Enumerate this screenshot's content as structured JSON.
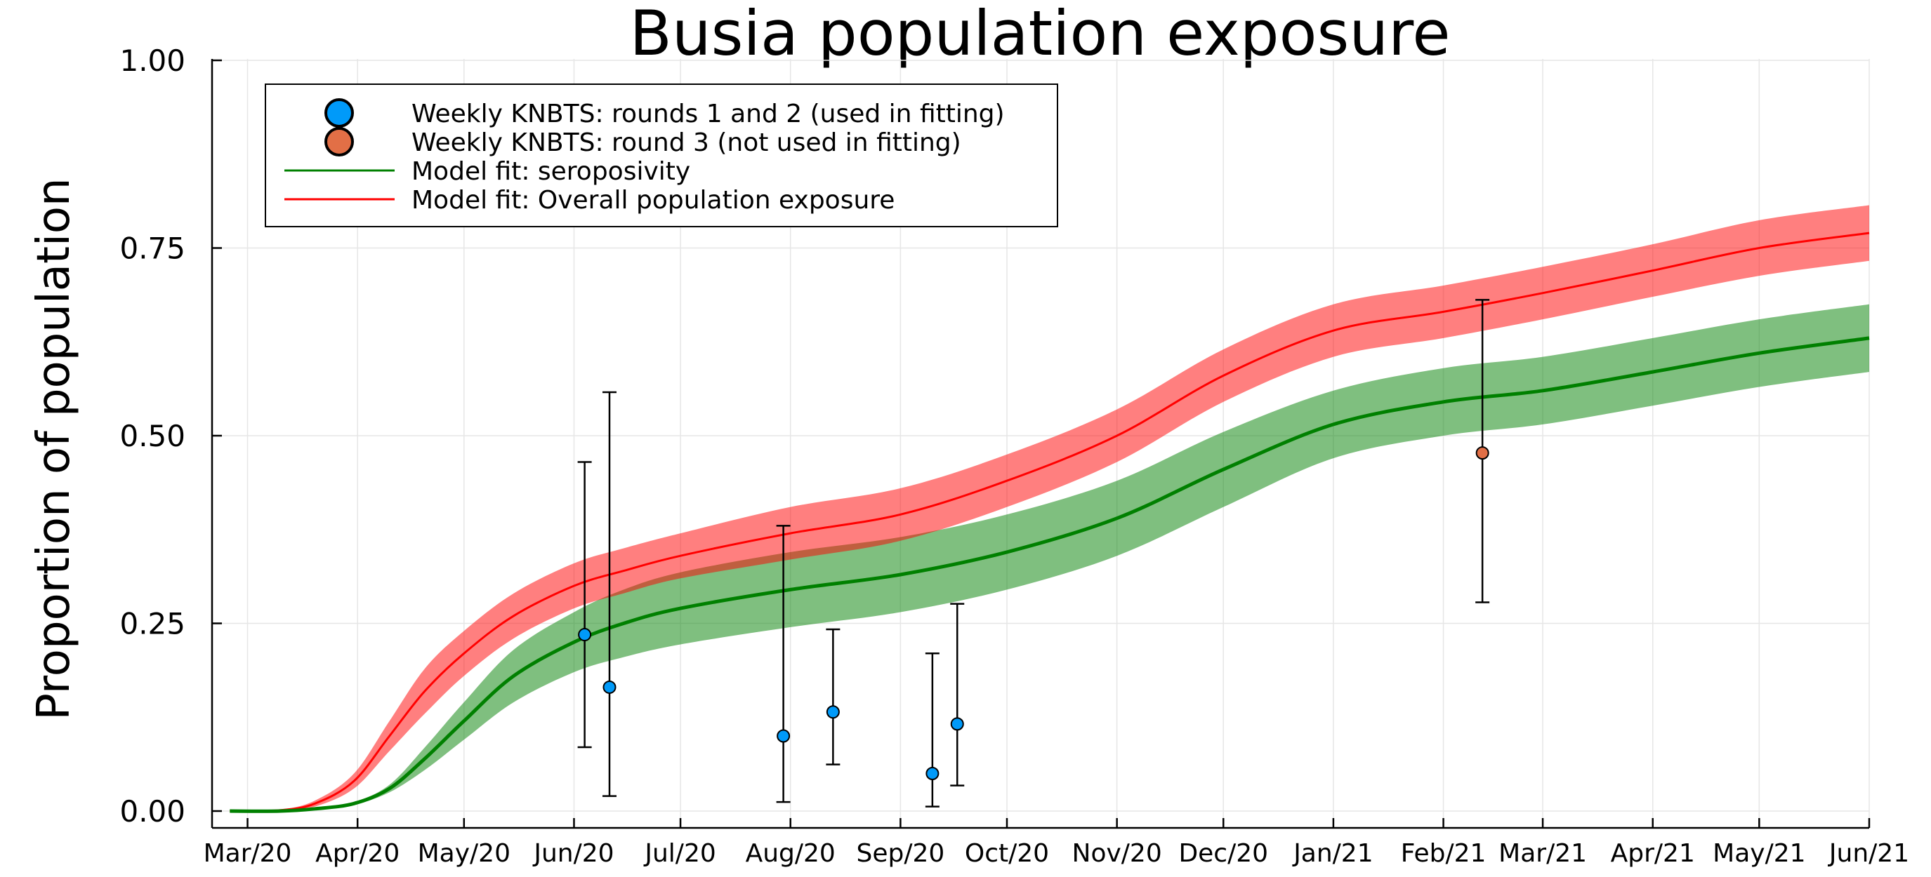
{
  "chart_data": {
    "type": "line",
    "title": "Busia population exposure",
    "xlabel": "",
    "ylabel": "Proportion of population",
    "ylim": [
      0,
      1
    ],
    "yticks": [
      {
        "value": 0,
        "label": "0.00"
      },
      {
        "value": 0.25,
        "label": "0.25"
      },
      {
        "value": 0.5,
        "label": "0.50"
      },
      {
        "value": 0.75,
        "label": "0.75"
      },
      {
        "value": 1,
        "label": "1.00"
      }
    ],
    "xlim": [
      "2020-02-20",
      "2021-06-01"
    ],
    "xticks": [
      {
        "date": "2020-03-01",
        "label": "Mar/20"
      },
      {
        "date": "2020-04-01",
        "label": "Apr/20"
      },
      {
        "date": "2020-05-01",
        "label": "May/20"
      },
      {
        "date": "2020-06-01",
        "label": "Jun/20"
      },
      {
        "date": "2020-07-01",
        "label": "Jul/20"
      },
      {
        "date": "2020-08-01",
        "label": "Aug/20"
      },
      {
        "date": "2020-09-01",
        "label": "Sep/20"
      },
      {
        "date": "2020-10-01",
        "label": "Oct/20"
      },
      {
        "date": "2020-11-01",
        "label": "Nov/20"
      },
      {
        "date": "2020-12-01",
        "label": "Dec/20"
      },
      {
        "date": "2021-01-01",
        "label": "Jan/21"
      },
      {
        "date": "2021-02-01",
        "label": "Feb/21"
      },
      {
        "date": "2021-03-01",
        "label": "Mar/21"
      },
      {
        "date": "2021-04-01",
        "label": "Apr/21"
      },
      {
        "date": "2021-05-01",
        "label": "May/21"
      },
      {
        "date": "2021-06-01",
        "label": "Jun/21"
      }
    ],
    "grid": true,
    "legend_position": "top-left",
    "series": [
      {
        "name": "Model fit: Overall population exposure",
        "kind": "line_with_band",
        "color": "#ff0000",
        "band_color": "#ff0000",
        "points": [
          {
            "x": "2020-02-25",
            "y": 0.0,
            "lo": 0.0,
            "hi": 0.0
          },
          {
            "x": "2020-03-10",
            "y": 0.001,
            "lo": 0.0,
            "hi": 0.002
          },
          {
            "x": "2020-03-20",
            "y": 0.01,
            "lo": 0.006,
            "hi": 0.014
          },
          {
            "x": "2020-03-31",
            "y": 0.04,
            "lo": 0.03,
            "hi": 0.05
          },
          {
            "x": "2020-04-10",
            "y": 0.1,
            "lo": 0.08,
            "hi": 0.12
          },
          {
            "x": "2020-04-20",
            "y": 0.16,
            "lo": 0.13,
            "hi": 0.19
          },
          {
            "x": "2020-05-01",
            "y": 0.21,
            "lo": 0.18,
            "hi": 0.24
          },
          {
            "x": "2020-05-15",
            "y": 0.26,
            "lo": 0.23,
            "hi": 0.29
          },
          {
            "x": "2020-06-01",
            "y": 0.3,
            "lo": 0.27,
            "hi": 0.33
          },
          {
            "x": "2020-06-15",
            "y": 0.32,
            "lo": 0.29,
            "hi": 0.35
          },
          {
            "x": "2020-07-01",
            "y": 0.34,
            "lo": 0.31,
            "hi": 0.37
          },
          {
            "x": "2020-08-01",
            "y": 0.37,
            "lo": 0.335,
            "hi": 0.405
          },
          {
            "x": "2020-09-01",
            "y": 0.395,
            "lo": 0.36,
            "hi": 0.43
          },
          {
            "x": "2020-10-01",
            "y": 0.44,
            "lo": 0.405,
            "hi": 0.475
          },
          {
            "x": "2020-11-01",
            "y": 0.5,
            "lo": 0.465,
            "hi": 0.535
          },
          {
            "x": "2020-12-01",
            "y": 0.58,
            "lo": 0.545,
            "hi": 0.615
          },
          {
            "x": "2021-01-01",
            "y": 0.64,
            "lo": 0.605,
            "hi": 0.675
          },
          {
            "x": "2021-02-01",
            "y": 0.665,
            "lo": 0.63,
            "hi": 0.7
          },
          {
            "x": "2021-03-01",
            "y": 0.69,
            "lo": 0.655,
            "hi": 0.725
          },
          {
            "x": "2021-04-01",
            "y": 0.72,
            "lo": 0.685,
            "hi": 0.755
          },
          {
            "x": "2021-05-01",
            "y": 0.75,
            "lo": 0.713,
            "hi": 0.787
          },
          {
            "x": "2021-06-01",
            "y": 0.77,
            "lo": 0.733,
            "hi": 0.807
          }
        ]
      },
      {
        "name": "Model fit: seroposivity",
        "kind": "line_with_band",
        "color": "#008000",
        "band_color": "#008000",
        "points": [
          {
            "x": "2020-02-25",
            "y": 0.0,
            "lo": 0.0,
            "hi": 0.0
          },
          {
            "x": "2020-03-10",
            "y": 0.0,
            "lo": 0.0,
            "hi": 0.0
          },
          {
            "x": "2020-03-20",
            "y": 0.003,
            "lo": 0.002,
            "hi": 0.004
          },
          {
            "x": "2020-03-31",
            "y": 0.01,
            "lo": 0.008,
            "hi": 0.012
          },
          {
            "x": "2020-04-10",
            "y": 0.03,
            "lo": 0.025,
            "hi": 0.035
          },
          {
            "x": "2020-04-20",
            "y": 0.07,
            "lo": 0.055,
            "hi": 0.085
          },
          {
            "x": "2020-05-01",
            "y": 0.12,
            "lo": 0.095,
            "hi": 0.145
          },
          {
            "x": "2020-05-15",
            "y": 0.18,
            "lo": 0.145,
            "hi": 0.215
          },
          {
            "x": "2020-06-01",
            "y": 0.225,
            "lo": 0.185,
            "hi": 0.265
          },
          {
            "x": "2020-06-15",
            "y": 0.25,
            "lo": 0.205,
            "hi": 0.295
          },
          {
            "x": "2020-07-01",
            "y": 0.27,
            "lo": 0.222,
            "hi": 0.318
          },
          {
            "x": "2020-08-01",
            "y": 0.295,
            "lo": 0.245,
            "hi": 0.345
          },
          {
            "x": "2020-09-01",
            "y": 0.315,
            "lo": 0.265,
            "hi": 0.365
          },
          {
            "x": "2020-10-01",
            "y": 0.345,
            "lo": 0.295,
            "hi": 0.395
          },
          {
            "x": "2020-11-01",
            "y": 0.39,
            "lo": 0.34,
            "hi": 0.44
          },
          {
            "x": "2020-12-01",
            "y": 0.455,
            "lo": 0.405,
            "hi": 0.505
          },
          {
            "x": "2021-01-01",
            "y": 0.515,
            "lo": 0.47,
            "hi": 0.56
          },
          {
            "x": "2021-02-01",
            "y": 0.545,
            "lo": 0.5,
            "hi": 0.59
          },
          {
            "x": "2021-03-01",
            "y": 0.56,
            "lo": 0.515,
            "hi": 0.605
          },
          {
            "x": "2021-04-01",
            "y": 0.585,
            "lo": 0.54,
            "hi": 0.63
          },
          {
            "x": "2021-05-01",
            "y": 0.61,
            "lo": 0.565,
            "hi": 0.655
          },
          {
            "x": "2021-06-01",
            "y": 0.63,
            "lo": 0.585,
            "hi": 0.675
          }
        ]
      },
      {
        "name": "Weekly KNBTS: rounds 1 and 2 (used in fitting)",
        "kind": "points_with_errorbars",
        "color": "#009af9",
        "points": [
          {
            "x": "2020-06-04",
            "y": 0.235,
            "lo": 0.085,
            "hi": 0.465
          },
          {
            "x": "2020-06-11",
            "y": 0.165,
            "lo": 0.02,
            "hi": 0.558
          },
          {
            "x": "2020-07-30",
            "y": 0.1,
            "lo": 0.012,
            "hi": 0.38
          },
          {
            "x": "2020-08-13",
            "y": 0.132,
            "lo": 0.062,
            "hi": 0.242
          },
          {
            "x": "2020-09-10",
            "y": 0.05,
            "lo": 0.006,
            "hi": 0.21
          },
          {
            "x": "2020-09-17",
            "y": 0.116,
            "lo": 0.034,
            "hi": 0.276
          }
        ]
      },
      {
        "name": "Weekly KNBTS: round 3 (not used in fitting)",
        "kind": "points_with_errorbars",
        "color": "#e26f46",
        "points": [
          {
            "x": "2021-02-12",
            "y": 0.477,
            "lo": 0.278,
            "hi": 0.681
          }
        ]
      }
    ],
    "legend": [
      {
        "label": "Weekly KNBTS: rounds 1 and 2 (used in fitting)",
        "marker": "circle",
        "color": "#009af9"
      },
      {
        "label": "Weekly KNBTS: round 3 (not used in fitting)",
        "marker": "circle",
        "color": "#e26f46"
      },
      {
        "label": "Model fit: seroposivity",
        "marker": "line",
        "color": "#008000"
      },
      {
        "label": "Model fit: Overall population exposure",
        "marker": "line",
        "color": "#ff0000"
      }
    ]
  }
}
